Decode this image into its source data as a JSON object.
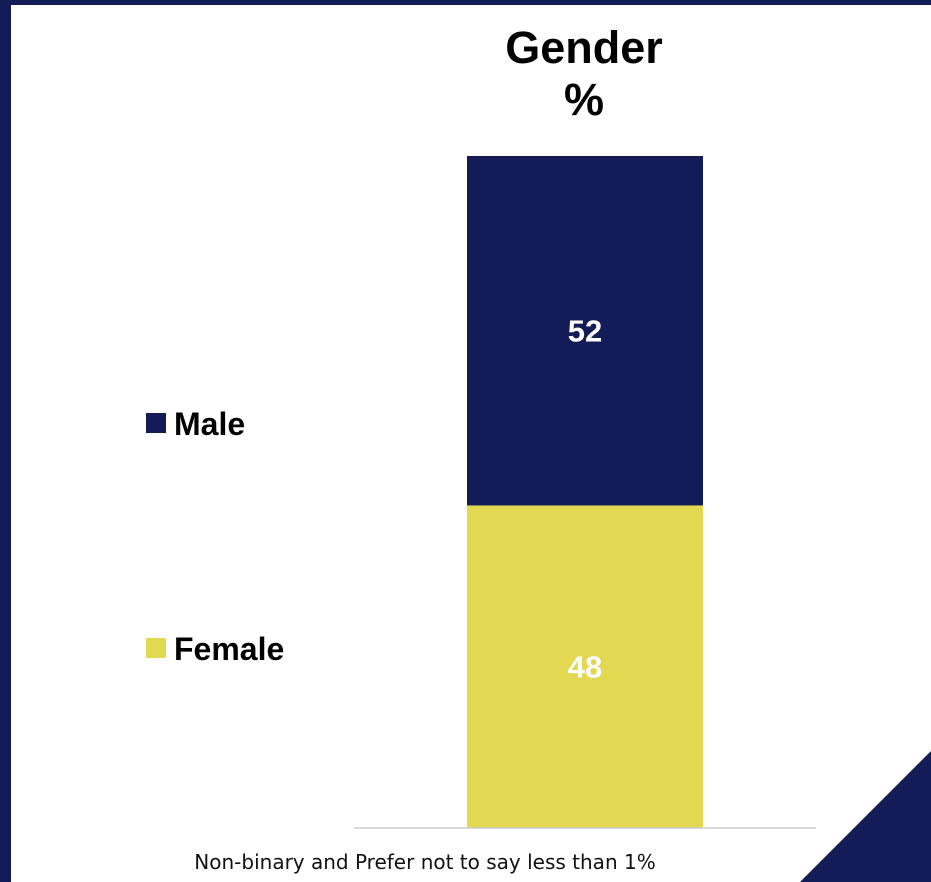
{
  "chart_data": {
    "type": "bar",
    "stacked": true,
    "title": "Gender",
    "subtitle": "%",
    "categories": [
      ""
    ],
    "series": [
      {
        "name": "Female",
        "values": [
          48
        ],
        "color": "#e2d852",
        "data_label": "48"
      },
      {
        "name": "Male",
        "values": [
          52
        ],
        "color": "#131c57",
        "data_label": "52"
      }
    ],
    "ylim": [
      0,
      100
    ],
    "legend_position": "left",
    "legend_order": [
      "Male",
      "Female"
    ],
    "grid": false,
    "xlabel": "",
    "ylabel": ""
  },
  "footnote": "Non-binary and Prefer not to say less than 1%",
  "colors": {
    "frame": "#131c57",
    "male": "#131c57",
    "female": "#e2d852",
    "corner_accent": "#131c57"
  }
}
